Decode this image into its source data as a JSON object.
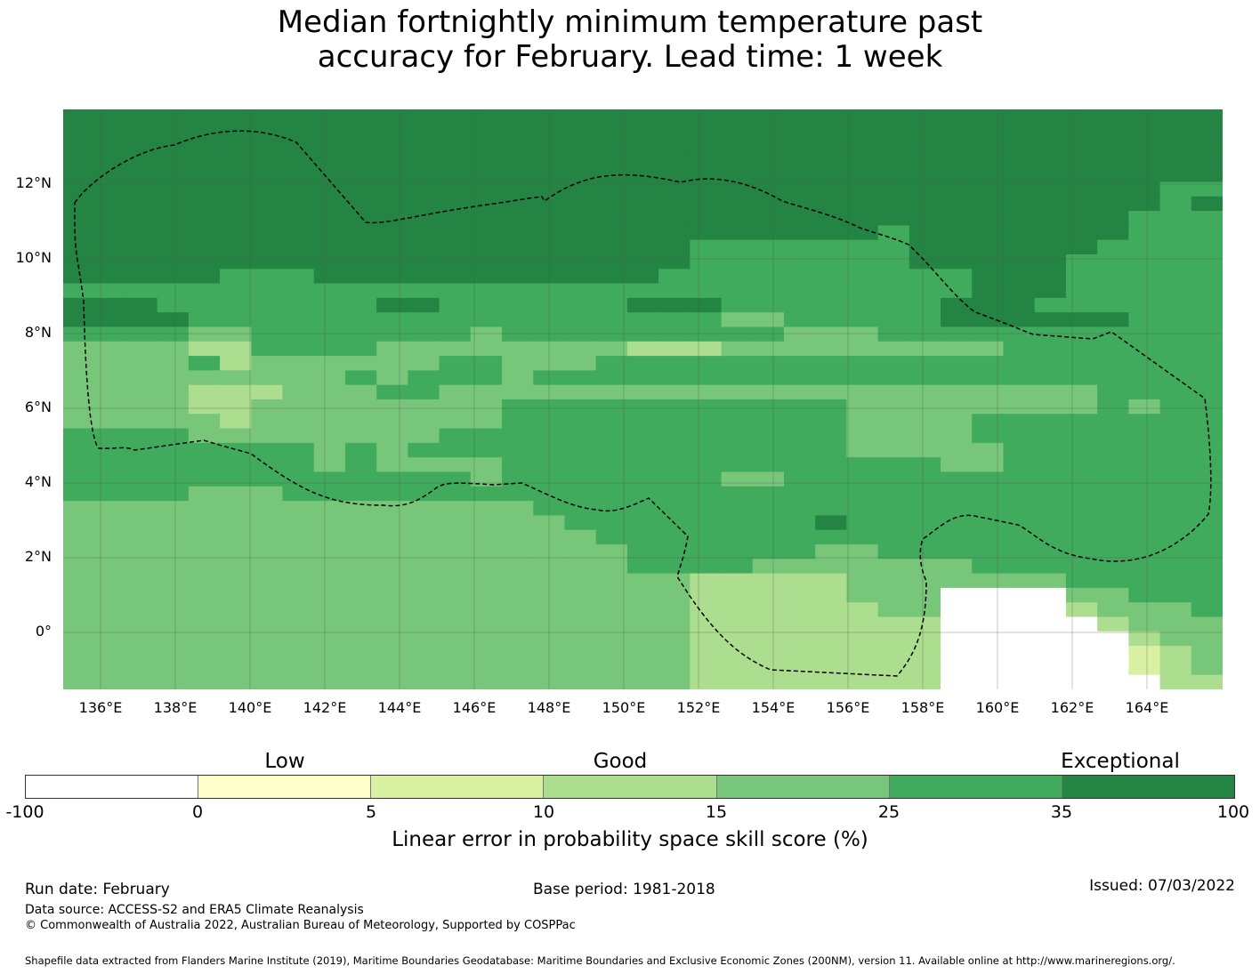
{
  "title_line1": "Median fortnightly minimum temperature past",
  "title_line2": "accuracy for February. Lead time: 1 week",
  "map": {
    "lat_labels": [
      "12°N",
      "10°N",
      "8°N",
      "6°N",
      "4°N",
      "2°N",
      "0°"
    ],
    "lon_labels": [
      "136°E",
      "138°E",
      "140°E",
      "142°E",
      "144°E",
      "146°E",
      "148°E",
      "150°E",
      "152°E",
      "154°E",
      "156°E",
      "158°E",
      "160°E",
      "162°E",
      "164°E"
    ],
    "grid_rows": [
      "6666666666666666666666666666666666666",
      "6666666666666666666666666666666666666",
      "6666666666666666666666666666666666666",
      "6666666666666666666666666666666666666",
      "6666666666666666666666666666666666666",
      "6666666666666666666666666666666666655",
      "6666666666666666666666666666666666656",
      "6666666666666666666666666666666666555",
      "6666666666666666666666666656666666555",
      "6666666666666666666655555556666665555",
      "6666666666666666666655555556666655555",
      "6666655566666666666555555555566655555",
      "5555555555555555555555555555566655555",
      "6665555555665555556665555555666555555",
      "6666555555555555555554455555666666555",
      "5555445555555455555555544455555555555",
      "4444335555444444443334444444445555555",
      "4444534444445544455555555555555555555",
      "4444444445455545555555555555555555555",
      "4444333444554444444444444444444445555",
      "4444334444444455555555555444444445455",
      "4444434444444455555555555444455555555",
      "5555444444445555555555555444455555555",
      "5555555545455555555555555444445555555",
      "5555555545444455555555555555445555555",
      "5555555555555455555554455555555555555",
      "5555444555555555555555555555555555555",
      "4444444444444445555555555555555555555",
      "4444444444444444555555556555555555555",
      "4444444444444444455555555555555555555",
      "4444444444444444445555554455555555555",
      "4444444444444444445555444444455555555",
      "4444444444444444444433333444444455555",
      "4444444444444444444433333444000044555",
      "4444444444444444444433333344000034445",
      "4444444444444444444433333333000003444",
      "4444444444444444444433333333000000344",
      "4444444444444444444433333333000000234",
      "4444444444444444444433333333000000234",
      "4444444444444444444433333333000000033"
    ],
    "colors": {
      "-100 to 0": "#ffffff",
      "0 to 5": "#ffffcc",
      "5 to 10": "#d9f0a3",
      "10 to 15": "#addd8e",
      "15 to 25": "#78c679",
      "25 to 35": "#41ab5d",
      "35 to 100": "#238443"
    }
  },
  "legend": {
    "categories": [
      "Low",
      "Good",
      "Exceptional"
    ],
    "ticks": [
      "-100",
      "0",
      "5",
      "10",
      "15",
      "25",
      "35",
      "100"
    ],
    "colors": [
      "#ffffff",
      "#ffffcc",
      "#d9f0a3",
      "#addd8e",
      "#78c679",
      "#41ab5d",
      "#238443"
    ],
    "label": "Linear error in probability space skill score (%)"
  },
  "footer": {
    "run_date": "Run date: February",
    "base_period": "Base period: 1981-2018",
    "issued": "Issued: 07/03/2022",
    "data_source": "Data source: ACCESS-S2 and ERA5 Climate Reanalysis",
    "copyright": "© Commonwealth of Australia 2022, Australian Bureau of Meteorology, Supported by COSPPac",
    "shapefile": "Shapefile data extracted from Flanders Marine Institute (2019), Maritime Boundaries Geodatabase: Maritime Boundaries and Exclusive Economic Zones (200NM), version 11. Available online at http://www.marineregions.org/."
  }
}
